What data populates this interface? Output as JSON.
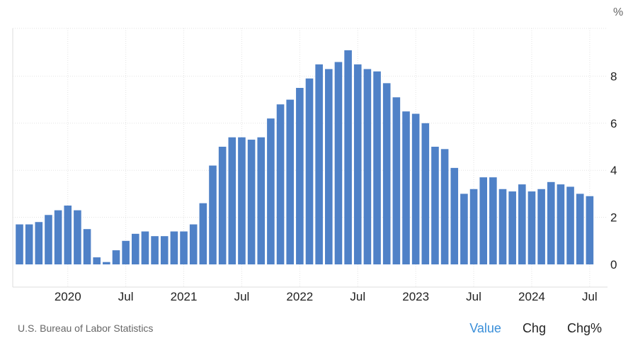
{
  "chart_data": {
    "type": "bar",
    "unit": "%",
    "x_tick_labels": [
      "2020",
      "Jul",
      "2021",
      "Jul",
      "2022",
      "Jul",
      "2023",
      "Jul",
      "2024",
      "Jul"
    ],
    "y_ticks": [
      0,
      2,
      4,
      6,
      8
    ],
    "ylim": [
      -1,
      10
    ],
    "grid": true,
    "bar_color": "#4f81c7",
    "first_month": "2019-08",
    "values": [
      1.7,
      1.7,
      1.8,
      2.1,
      2.3,
      2.5,
      2.3,
      1.5,
      0.3,
      0.1,
      0.6,
      1.0,
      1.3,
      1.4,
      1.2,
      1.2,
      1.4,
      1.4,
      1.7,
      2.6,
      4.2,
      5.0,
      5.4,
      5.4,
      5.3,
      5.4,
      6.2,
      6.8,
      7.0,
      7.5,
      7.9,
      8.5,
      8.3,
      8.6,
      9.1,
      8.5,
      8.3,
      8.2,
      7.7,
      7.1,
      6.5,
      6.4,
      6.0,
      5.0,
      4.9,
      4.1,
      3.0,
      3.2,
      3.7,
      3.7,
      3.2,
      3.1,
      3.4,
      3.1,
      3.2,
      3.5,
      3.4,
      3.3,
      3.0,
      2.9
    ]
  },
  "footer": {
    "source": "U.S. Bureau of Labor Statistics",
    "tabs": [
      {
        "label": "Value",
        "active": true
      },
      {
        "label": "Chg",
        "active": false
      },
      {
        "label": "Chg%",
        "active": false
      }
    ]
  },
  "colors": {
    "accent": "#3a8fd9",
    "grid": "#e3e3e3"
  }
}
